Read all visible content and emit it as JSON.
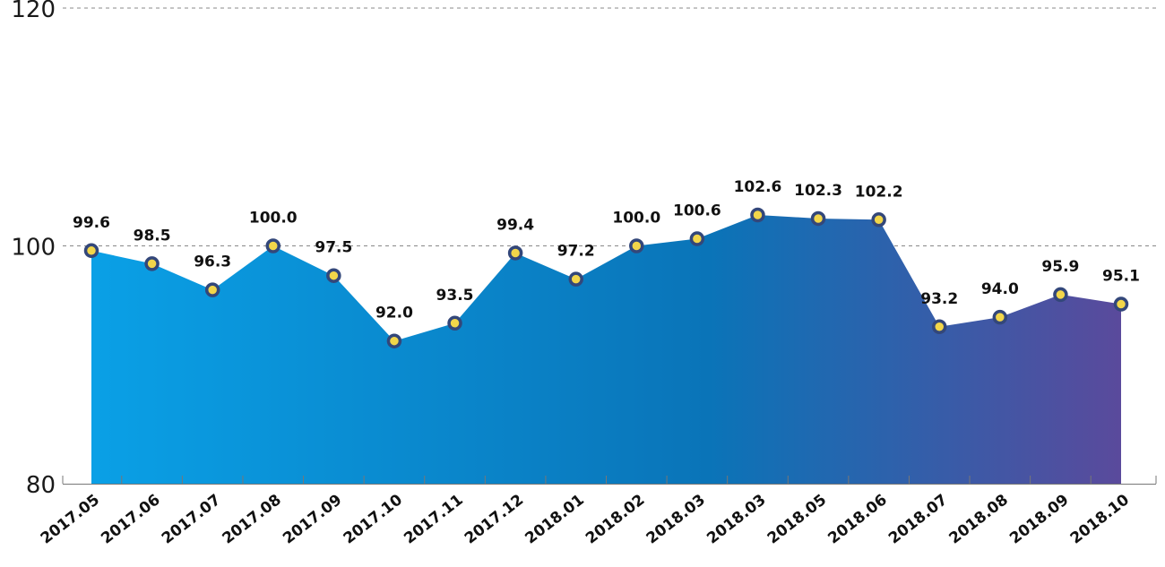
{
  "chart_data": {
    "type": "area",
    "categories": [
      "2017.05",
      "2017.06",
      "2017.07",
      "2017.08",
      "2017.09",
      "2017.10",
      "2017.11",
      "2017.12",
      "2018.01",
      "2018.02",
      "2018.03",
      "2018.03",
      "2018.05",
      "2018.06",
      "2018.07",
      "2018.08",
      "2018.09",
      "2018.10"
    ],
    "values": [
      99.6,
      98.5,
      96.3,
      100.0,
      97.5,
      92.0,
      93.5,
      99.4,
      97.2,
      100.0,
      100.6,
      102.6,
      102.3,
      102.2,
      93.2,
      94.0,
      95.9,
      95.1
    ],
    "data_labels": [
      "99.6",
      "98.5",
      "96.3",
      "100.0",
      "97.5",
      "92.0",
      "93.5",
      "99.4",
      "97.2",
      "100.0",
      "100.6",
      "102.6",
      "102.3",
      "102.2",
      "93.2",
      "94.0",
      "95.9",
      "95.1"
    ],
    "y_ticks": [
      "80",
      "100",
      "120"
    ],
    "y_tick_values": [
      80,
      100,
      120
    ],
    "ylim": [
      80,
      120
    ],
    "grid": "dashed horizontal lines at 100 and 120",
    "legend": "none",
    "colors": {
      "fill_start": "#0aa0e6",
      "fill_mid": "#0a74b8",
      "fill_end": "#5a4a9c",
      "marker_fill": "#f2d64a",
      "marker_stroke": "#33477a",
      "axis": "#777777",
      "grid": "#888888"
    }
  }
}
